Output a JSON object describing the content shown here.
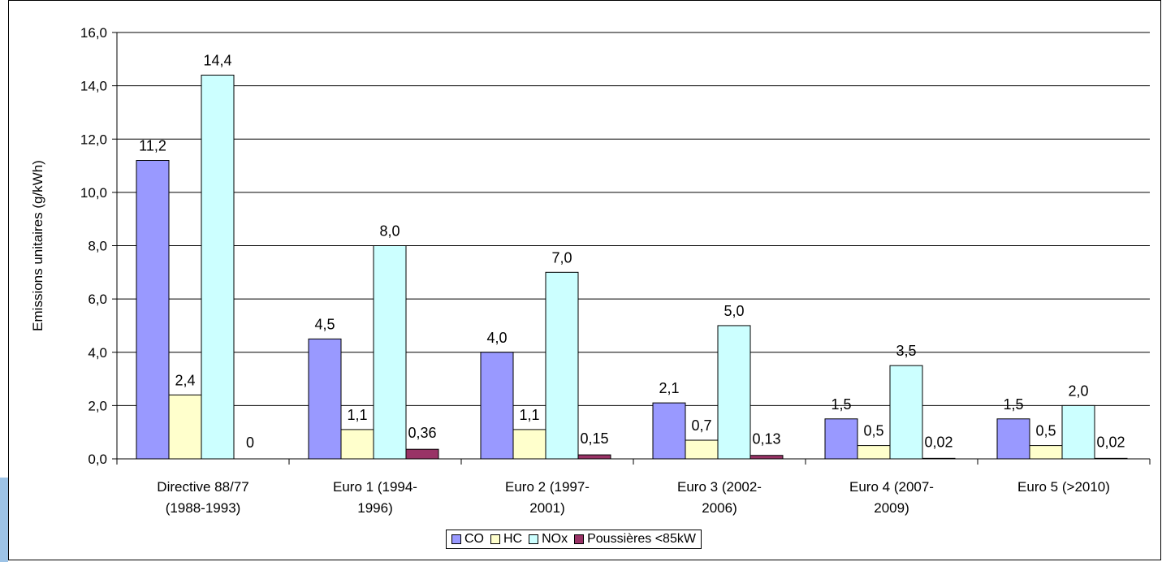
{
  "chart_data": {
    "type": "bar",
    "ylabel": "Emissions unitaires (g/kWh)",
    "ylim": [
      0,
      16
    ],
    "yticks": [
      "0,0",
      "2,0",
      "4,0",
      "6,0",
      "8,0",
      "10,0",
      "12,0",
      "14,0",
      "16,0"
    ],
    "grid": true,
    "legend_position": "bottom",
    "categories": [
      [
        "Directive 88/77",
        "(1988-1993)"
      ],
      [
        "Euro 1 (1994-",
        "1996)"
      ],
      [
        "Euro 2 (1997-",
        "2001)"
      ],
      [
        "Euro 3 (2002-",
        "2006)"
      ],
      [
        "Euro 4 (2007-",
        "2009)"
      ],
      [
        "Euro 5 (>2010)"
      ]
    ],
    "series": [
      {
        "name": "CO",
        "color": "#9999ff",
        "values": [
          11.2,
          4.5,
          4.0,
          2.1,
          1.5,
          1.5
        ],
        "labels": [
          "11,2",
          "4,5",
          "4,0",
          "2,1",
          "1,5",
          "1,5"
        ]
      },
      {
        "name": "HC",
        "color": "#ffffcc",
        "values": [
          2.4,
          1.1,
          1.1,
          0.7,
          0.5,
          0.5
        ],
        "labels": [
          "2,4",
          "1,1",
          "1,1",
          "0,7",
          "0,5",
          "0,5"
        ]
      },
      {
        "name": "NOx",
        "color": "#ccffff",
        "values": [
          14.4,
          8.0,
          7.0,
          5.0,
          3.5,
          2.0
        ],
        "labels": [
          "14,4",
          "8,0",
          "7,0",
          "5,0",
          "3,5",
          "2,0"
        ]
      },
      {
        "name": "Poussières <85kW",
        "color": "#993366",
        "values": [
          0,
          0.36,
          0.15,
          0.13,
          0.02,
          0.02
        ],
        "labels": [
          "0",
          "0,36",
          "0,15",
          "0,13",
          "0,02",
          "0,02"
        ]
      }
    ]
  }
}
